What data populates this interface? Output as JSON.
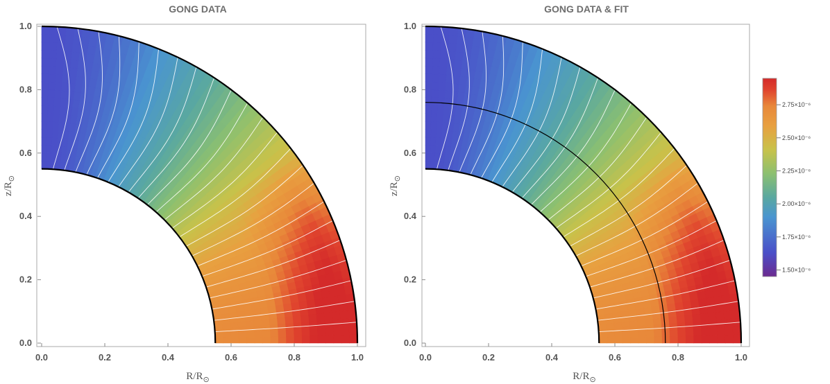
{
  "chart_data": [
    {
      "type": "heatmap",
      "title": "GONG DATA",
      "xlabel": "R/R",
      "ylabel": "z/R",
      "label_subscript": "⊙",
      "xlim": [
        0.0,
        1.0
      ],
      "ylim": [
        0.0,
        1.0
      ],
      "xticks": [
        "0.0",
        "0.2",
        "0.4",
        "0.6",
        "0.8",
        "1.0"
      ],
      "yticks": [
        "0.0",
        "0.2",
        "0.4",
        "0.6",
        "0.8",
        "1.0"
      ],
      "domain": {
        "inner_radius": 0.55,
        "outer_radius": 1.0
      },
      "overlay_radius": null
    },
    {
      "type": "heatmap",
      "title": "GONG DATA & FIT",
      "xlabel": "R/R",
      "ylabel": "z/R",
      "label_subscript": "⊙",
      "xlim": [
        0.0,
        1.0
      ],
      "ylim": [
        0.0,
        1.0
      ],
      "xticks": [
        "0.0",
        "0.2",
        "0.4",
        "0.6",
        "0.8",
        "1.0"
      ],
      "yticks": [
        "0.0",
        "0.2",
        "0.4",
        "0.6",
        "0.8",
        "1.0"
      ],
      "domain": {
        "inner_radius": 0.55,
        "outer_radius": 1.0
      },
      "overlay_radius": 0.76
    }
  ],
  "colorbar": {
    "range": [
      1.45e-06,
      2.95e-06
    ],
    "ticks": [
      {
        "value": 2.75e-06,
        "label": "2.75×10⁻⁶"
      },
      {
        "value": 2.5e-06,
        "label": "2.50×10⁻⁶"
      },
      {
        "value": 2.25e-06,
        "label": "2.25×10⁻⁶"
      },
      {
        "value": 2e-06,
        "label": "2.00×10⁻⁶"
      },
      {
        "value": 1.75e-06,
        "label": "1.75×10⁻⁶"
      },
      {
        "value": 1.5e-06,
        "label": "1.50×10⁻⁶"
      }
    ]
  },
  "colors": {
    "scale": [
      "#6b2a8f",
      "#4a4fc8",
      "#4a95d0",
      "#5aa8a0",
      "#8cc070",
      "#c8c24a",
      "#e8a040",
      "#e8883a",
      "#e0452e",
      "#d42a2a"
    ],
    "contour": "#ffffff",
    "boundary": "#000000"
  }
}
